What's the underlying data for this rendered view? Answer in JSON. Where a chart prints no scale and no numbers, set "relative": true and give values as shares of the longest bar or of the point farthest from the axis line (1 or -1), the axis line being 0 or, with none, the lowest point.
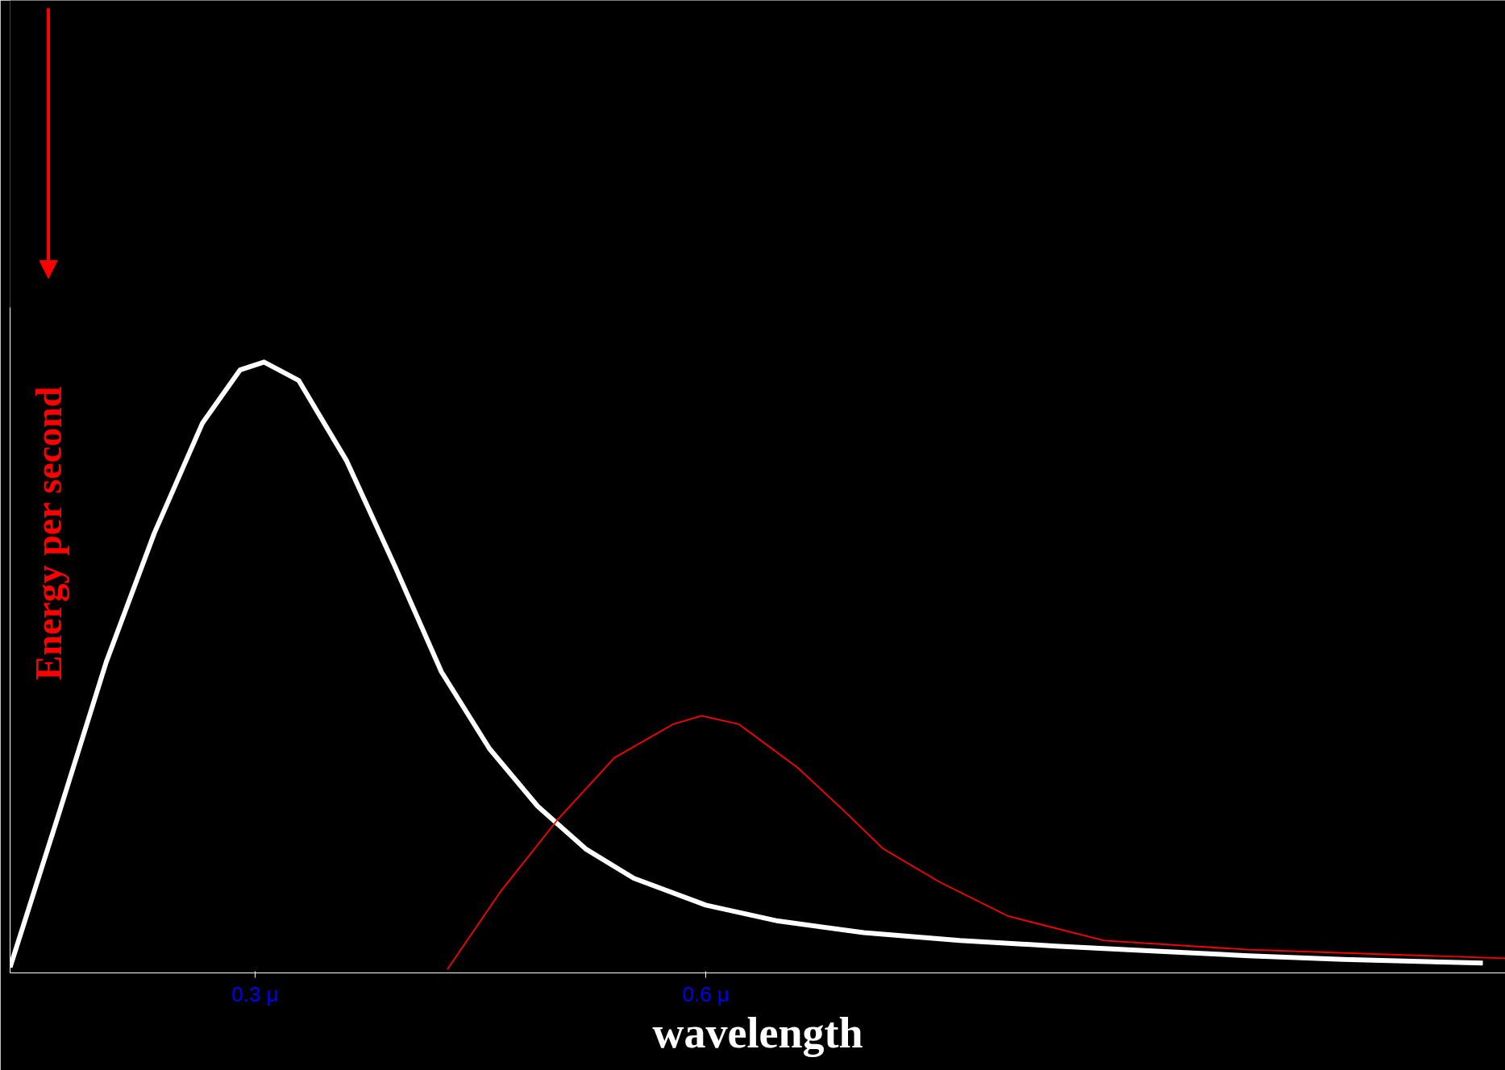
{
  "chart_data": {
    "type": "line",
    "relative": true,
    "xlabel": "wavelength",
    "ylabel": "Energy per second",
    "xlim": [
      0.137,
      1.132
    ],
    "xticks": [
      {
        "value": 0.3,
        "label": "0.3 μ"
      },
      {
        "value": 0.6,
        "label": "0.6 μ"
      }
    ],
    "grid": false,
    "marker": "none",
    "line_style": "solid",
    "series": [
      {
        "color": "#ffffff",
        "x": [
          0.137,
          0.169,
          0.201,
          0.233,
          0.265,
          0.29,
          0.306,
          0.329,
          0.361,
          0.393,
          0.424,
          0.456,
          0.488,
          0.52,
          0.552,
          0.6,
          0.648,
          0.705,
          0.769,
          0.833,
          0.897,
          0.961,
          1.024,
          1.117
        ],
        "values": [
          0.009,
          0.257,
          0.509,
          0.72,
          0.9,
          0.987,
          1.0,
          0.97,
          0.838,
          0.666,
          0.493,
          0.367,
          0.273,
          0.203,
          0.155,
          0.111,
          0.085,
          0.066,
          0.053,
          0.044,
          0.036,
          0.028,
          0.022,
          0.016
        ]
      },
      {
        "color": "#ff0000",
        "x": [
          0.428,
          0.463,
          0.501,
          0.539,
          0.578,
          0.597,
          0.622,
          0.661,
          0.692,
          0.718,
          0.756,
          0.801,
          0.865,
          0.961,
          1.056,
          1.132
        ],
        "values": [
          0.006,
          0.132,
          0.25,
          0.352,
          0.407,
          0.421,
          0.407,
          0.336,
          0.265,
          0.203,
          0.148,
          0.093,
          0.053,
          0.038,
          0.03,
          0.024
        ]
      }
    ]
  }
}
